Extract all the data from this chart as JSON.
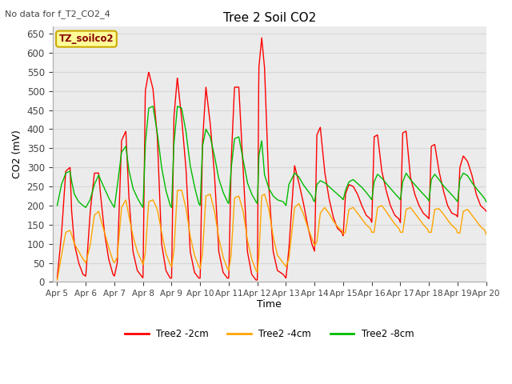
{
  "title": "Tree 2 Soil CO2",
  "subtitle": "No data for f_T2_CO2_4",
  "xlabel": "Time",
  "ylabel": "CO2 (mV)",
  "ylim": [
    0,
    670
  ],
  "yticks": [
    0,
    50,
    100,
    150,
    200,
    250,
    300,
    350,
    400,
    450,
    500,
    550,
    600,
    650
  ],
  "legend_labels": [
    "Tree2 -2cm",
    "Tree2 -4cm",
    "Tree2 -8cm"
  ],
  "legend_colors": [
    "#ff0000",
    "#ffa500",
    "#00bb00"
  ],
  "watermark_text": "TZ_soilco2",
  "watermark_bg": "#ffff99",
  "watermark_border": "#ccaa00",
  "grid_color": "#d8d8d8",
  "bg_color": "#ebebeb",
  "line_width": 1.0,
  "x_start": 4.833,
  "x_end": 20.0,
  "xtick_positions": [
    5,
    6,
    7,
    8,
    9,
    10,
    11,
    12,
    13,
    14,
    15,
    16,
    17,
    18,
    19,
    20
  ],
  "xtick_labels": [
    "Apr 5",
    "Apr 6",
    "Apr 7",
    "Apr 8",
    "Apr 9",
    "Apr 10",
    "Apr 11",
    "Apr 12",
    "Apr 13",
    "Apr 14",
    "Apr 15",
    "Apr 16",
    "Apr 17",
    "Apr 18",
    "Apr 19",
    "Apr 20"
  ],
  "red_keys_t": [
    5.0,
    5.15,
    5.3,
    5.45,
    5.5,
    5.6,
    5.75,
    5.9,
    6.0,
    6.15,
    6.3,
    6.45,
    6.5,
    6.65,
    6.8,
    6.95,
    7.0,
    7.1,
    7.25,
    7.4,
    7.5,
    7.65,
    7.8,
    7.95,
    8.0,
    8.08,
    8.2,
    8.35,
    8.5,
    8.65,
    8.8,
    8.95,
    9.0,
    9.08,
    9.2,
    9.35,
    9.5,
    9.65,
    9.8,
    9.95,
    10.0,
    10.08,
    10.2,
    10.35,
    10.5,
    10.65,
    10.8,
    10.95,
    11.0,
    11.08,
    11.2,
    11.35,
    11.5,
    11.65,
    11.8,
    11.95,
    12.0,
    12.05,
    12.15,
    12.25,
    12.4,
    12.55,
    12.7,
    12.9,
    12.95,
    13.0,
    13.1,
    13.3,
    13.45,
    13.6,
    13.75,
    13.9,
    13.95,
    14.0,
    14.08,
    14.2,
    14.35,
    14.5,
    14.65,
    14.8,
    14.95,
    15.0,
    15.08,
    15.2,
    15.35,
    15.5,
    15.65,
    15.8,
    15.95,
    16.0,
    16.08,
    16.2,
    16.35,
    16.5,
    16.65,
    16.8,
    16.95,
    17.0,
    17.08,
    17.2,
    17.35,
    17.5,
    17.65,
    17.8,
    17.95,
    18.0,
    18.08,
    18.2,
    18.35,
    18.5,
    18.65,
    18.8,
    18.95,
    19.0,
    19.08,
    19.2,
    19.35,
    19.5,
    19.65,
    19.8,
    19.95,
    20.0
  ],
  "red_keys_v": [
    10,
    125,
    290,
    300,
    190,
    100,
    50,
    20,
    15,
    180,
    285,
    285,
    240,
    130,
    60,
    20,
    15,
    50,
    370,
    395,
    230,
    80,
    30,
    15,
    10,
    500,
    550,
    505,
    380,
    100,
    30,
    10,
    10,
    430,
    535,
    430,
    300,
    80,
    25,
    10,
    10,
    365,
    510,
    415,
    280,
    80,
    25,
    10,
    10,
    310,
    510,
    510,
    300,
    80,
    20,
    5,
    5,
    560,
    640,
    560,
    250,
    80,
    30,
    20,
    15,
    10,
    85,
    305,
    260,
    210,
    150,
    100,
    90,
    80,
    385,
    405,
    290,
    220,
    170,
    140,
    130,
    120,
    230,
    255,
    250,
    230,
    200,
    175,
    165,
    155,
    380,
    385,
    290,
    240,
    200,
    175,
    165,
    155,
    390,
    395,
    275,
    230,
    200,
    180,
    170,
    165,
    355,
    360,
    290,
    240,
    200,
    180,
    175,
    170,
    300,
    330,
    315,
    280,
    230,
    200,
    190,
    185
  ],
  "orange_keys_v": [
    5,
    70,
    130,
    135,
    125,
    100,
    80,
    60,
    50,
    95,
    175,
    185,
    170,
    130,
    90,
    55,
    50,
    65,
    195,
    215,
    175,
    120,
    80,
    55,
    45,
    75,
    210,
    215,
    190,
    130,
    75,
    45,
    40,
    80,
    240,
    240,
    195,
    120,
    70,
    40,
    35,
    75,
    225,
    230,
    185,
    115,
    65,
    35,
    30,
    70,
    220,
    225,
    185,
    110,
    60,
    30,
    25,
    65,
    225,
    230,
    190,
    120,
    70,
    50,
    45,
    40,
    60,
    195,
    205,
    180,
    145,
    115,
    105,
    95,
    105,
    180,
    195,
    180,
    160,
    145,
    135,
    125,
    130,
    190,
    195,
    180,
    165,
    150,
    140,
    130,
    130,
    195,
    200,
    185,
    168,
    152,
    140,
    130,
    130,
    190,
    195,
    180,
    165,
    150,
    138,
    130,
    130,
    190,
    192,
    178,
    162,
    148,
    138,
    128,
    128,
    185,
    190,
    175,
    160,
    145,
    135,
    125
  ],
  "green_keys_v": [
    200,
    255,
    285,
    290,
    265,
    230,
    210,
    200,
    195,
    215,
    255,
    280,
    270,
    245,
    220,
    200,
    195,
    250,
    340,
    355,
    295,
    245,
    220,
    200,
    195,
    360,
    455,
    460,
    390,
    300,
    240,
    200,
    195,
    360,
    460,
    455,
    395,
    305,
    250,
    205,
    200,
    355,
    400,
    380,
    330,
    270,
    235,
    210,
    205,
    295,
    375,
    380,
    320,
    260,
    230,
    210,
    205,
    330,
    370,
    280,
    245,
    225,
    215,
    210,
    205,
    200,
    255,
    285,
    275,
    255,
    240,
    225,
    215,
    210,
    255,
    265,
    260,
    250,
    240,
    230,
    220,
    215,
    240,
    262,
    268,
    258,
    248,
    235,
    220,
    215,
    262,
    282,
    272,
    258,
    245,
    232,
    220,
    215,
    262,
    285,
    268,
    255,
    242,
    230,
    218,
    212,
    268,
    282,
    268,
    252,
    240,
    228,
    215,
    210,
    268,
    285,
    278,
    260,
    245,
    232,
    218,
    210
  ]
}
